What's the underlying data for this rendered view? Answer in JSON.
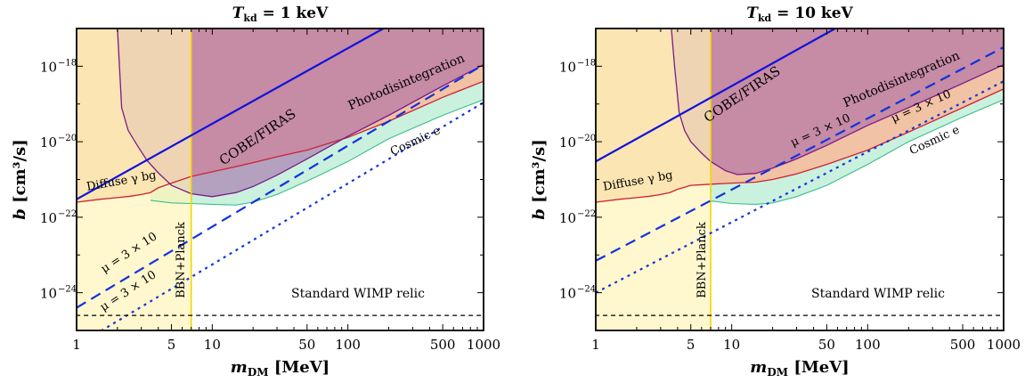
{
  "colors": {
    "cobe": "#1111dd",
    "mu": "#1133dd",
    "photodis_fill": "#a35fa6",
    "photodis_line": "#7a1a8a",
    "diffuse_line": "#cc2233",
    "diffuse_fill": "#e8905a",
    "cosmic_fill": "#a7e8c8",
    "cosmic_line": "#39bf8a",
    "bbn_fill": "#fff4b8",
    "bbn_line": "#f2d700",
    "wimp": "#000000"
  },
  "chart_data": [
    {
      "type": "area",
      "title": "T_kd = 1 keV",
      "title_main": "T",
      "title_sub": "kd",
      "title_rest": " = 1 keV",
      "xlabel_main": "m",
      "xlabel_sub": "DM",
      "xlabel_unit": " [MeV]",
      "ylabel_main": "b",
      "ylabel_unit": " [cm³/s]",
      "x_scale": "log",
      "y_scale": "log",
      "xlim": [
        1,
        1000
      ],
      "ylim": [
        1e-25,
        1e-17
      ],
      "x_ticks": [
        1,
        5,
        10,
        50,
        100,
        500,
        1000
      ],
      "x_tick_labels": [
        "1",
        "5",
        "10",
        "50",
        "100",
        "500",
        "1000"
      ],
      "y_ticks": [
        1e-24,
        1e-22,
        1e-20,
        1e-18
      ],
      "y_tick_labels": [
        "10",
        "10",
        "10",
        "10"
      ],
      "y_tick_exponents": [
        "−24",
        "−22",
        "−20",
        "−18"
      ],
      "labels": {
        "cobe": "COBE/FIRAS",
        "photodis": "Photodisintegration",
        "diffuse": "Diffuse γ bg",
        "cosmic": "Cosmic e",
        "cosmic_sup": "±",
        "bbn": "BBN+Planck",
        "wimp": "Standard WIMP relic",
        "mu7": "μ = 3 × 10",
        "mu7_exp": "−7",
        "mu8": "μ = 3 × 10",
        "mu8_exp": "−8"
      },
      "bbn_x": 7,
      "wimp_b": 2.5e-25,
      "cobe": {
        "x": [
          1,
          1000
        ],
        "y": [
          3e-22,
          3e-16
        ]
      },
      "mu7": {
        "x": [
          1,
          1000
        ],
        "y": [
          4e-25,
          1.1e-18
        ]
      },
      "mu8": {
        "x": [
          1,
          1000
        ],
        "y": [
          4e-26,
          1.1e-19
        ]
      },
      "photodis": {
        "x": [
          2.0,
          2.15,
          2.4,
          2.8,
          3.3,
          4.0,
          5.0,
          7.0,
          10,
          15,
          20,
          30,
          50,
          100,
          200,
          500,
          1000
        ],
        "y": [
          1e-17,
          8e-20,
          2e-20,
          8e-21,
          3.2e-21,
          1.5e-21,
          7e-22,
          4.2e-22,
          3.5e-22,
          4.5e-22,
          6.5e-22,
          1.3e-21,
          3.5e-21,
          1.4e-20,
          5e-20,
          3e-19,
          1.1e-18
        ]
      },
      "diffuse": {
        "x": [
          1,
          1.5,
          2,
          2.5,
          3,
          3.5,
          4,
          5,
          7,
          10,
          15,
          20,
          30,
          50,
          100,
          200,
          500,
          1000
        ],
        "y": [
          2.5e-22,
          3e-22,
          3.3e-22,
          3.6e-22,
          4e-22,
          4.5e-22,
          6e-22,
          8e-22,
          1.2e-21,
          1.6e-21,
          2.2e-21,
          2.8e-21,
          4e-21,
          6e-21,
          1.3e-20,
          3.5e-20,
          1.5e-19,
          4e-19
        ]
      },
      "cosmic": {
        "x": [
          3.5,
          5,
          7,
          10,
          15,
          20,
          30,
          50,
          100,
          200,
          500,
          1000
        ],
        "y": [
          2.8e-22,
          2.4e-22,
          2.3e-22,
          2.2e-22,
          2.1e-22,
          2.5e-22,
          4e-22,
          9e-22,
          3e-21,
          1.2e-20,
          5e-20,
          1.3e-19
        ]
      }
    },
    {
      "type": "area",
      "title": "T_kd = 10 keV",
      "title_main": "T",
      "title_sub": "kd",
      "title_rest": " = 10 keV",
      "xlabel_main": "m",
      "xlabel_sub": "DM",
      "xlabel_unit": " [MeV]",
      "ylabel_main": "b",
      "ylabel_unit": " [cm³/s]",
      "x_scale": "log",
      "y_scale": "log",
      "xlim": [
        1,
        1000
      ],
      "ylim": [
        1e-25,
        1e-17
      ],
      "x_ticks": [
        1,
        5,
        10,
        50,
        100,
        500,
        1000
      ],
      "x_tick_labels": [
        "1",
        "5",
        "10",
        "50",
        "100",
        "500",
        "1000"
      ],
      "y_ticks": [
        1e-24,
        1e-22,
        1e-20,
        1e-18
      ],
      "y_tick_labels": [
        "10",
        "10",
        "10",
        "10"
      ],
      "y_tick_exponents": [
        "−24",
        "−22",
        "−20",
        "−18"
      ],
      "labels": {
        "cobe": "COBE/FIRAS",
        "photodis": "Photodisintegration",
        "diffuse": "Diffuse γ bg",
        "cosmic": "Cosmic e",
        "cosmic_sup": "±",
        "bbn": "BBN+Planck",
        "wimp": "Standard WIMP relic",
        "mu7": "μ = 3 × 10",
        "mu7_exp": "−7",
        "mu8": "μ = 3 × 10",
        "mu8_exp": "−8"
      },
      "bbn_x": 7,
      "wimp_b": 2.5e-25,
      "cobe": {
        "x": [
          1,
          1000
        ],
        "y": [
          3e-21,
          3e-15
        ]
      },
      "mu7": {
        "x": [
          1,
          1000
        ],
        "y": [
          7e-24,
          3.2e-18
        ]
      },
      "mu8": {
        "x": [
          1,
          1000
        ],
        "y": [
          1e-24,
          4e-19
        ]
      },
      "photodis": {
        "x": [
          3.6,
          3.8,
          4.1,
          4.5,
          5.0,
          6.0,
          7.0,
          9.0,
          11,
          15,
          20,
          30,
          50,
          100,
          200,
          500,
          1000
        ],
        "y": [
          1e-17,
          1e-18,
          6e-20,
          2e-20,
          1e-20,
          5e-21,
          3e-21,
          1.7e-21,
          1.35e-21,
          1.45e-21,
          2e-21,
          3.5e-21,
          8e-21,
          2.7e-20,
          8e-20,
          3.5e-19,
          1.1e-18
        ]
      },
      "diffuse": {
        "x": [
          1,
          1.5,
          2,
          2.5,
          3,
          3.5,
          4,
          5,
          7,
          10,
          15,
          20,
          30,
          50,
          100,
          200,
          500,
          1000
        ],
        "y": [
          2.5e-22,
          3e-22,
          3.3e-22,
          3.6e-22,
          4e-22,
          4.5e-22,
          5.5e-22,
          7e-22,
          7.5e-22,
          8e-22,
          8.5e-22,
          1e-21,
          1.4e-21,
          2.5e-21,
          6e-21,
          1.8e-20,
          8e-20,
          2.5e-19
        ]
      },
      "cosmic": {
        "x": [
          7,
          10,
          15,
          20,
          30,
          50,
          100,
          200,
          500,
          1000
        ],
        "y": [
          2.7e-22,
          2.3e-22,
          2.2e-22,
          2.4e-22,
          3.5e-22,
          7e-22,
          2.5e-21,
          1e-20,
          4.5e-20,
          1.3e-19
        ]
      }
    }
  ]
}
